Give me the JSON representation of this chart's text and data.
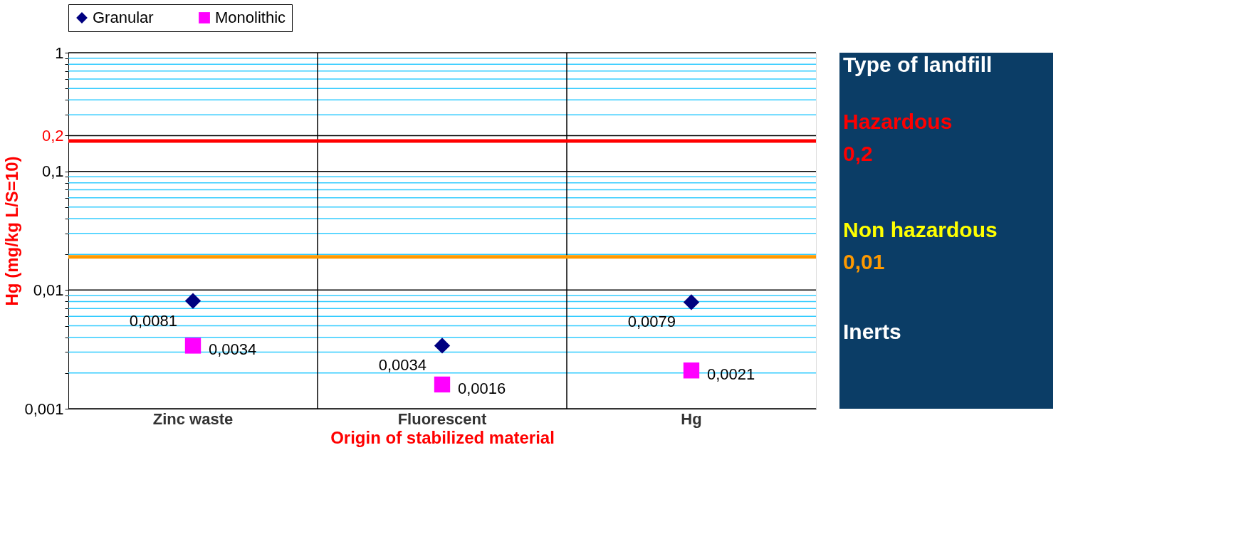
{
  "chart_data": {
    "type": "scatter",
    "ylabel": "Hg (mg/kg  L/S=10)",
    "xlabel": "Origin of stabilized material",
    "categories": [
      "Zinc waste",
      "Fluorescent",
      "Hg"
    ],
    "series": [
      {
        "name": "Granular",
        "color": "#000080",
        "marker": "diamond",
        "values": [
          0.0081,
          0.0034,
          0.0079
        ],
        "value_labels": [
          "0,0081",
          "0,0034",
          "0,0079"
        ]
      },
      {
        "name": "Monolithic",
        "color": "#ff00ff",
        "marker": "square",
        "values": [
          0.0034,
          0.0016,
          0.0021
        ],
        "value_labels": [
          "0,0034",
          "0,0016",
          "0,0021"
        ]
      }
    ],
    "log": "y",
    "ylim": [
      0.001,
      1
    ],
    "yticks": [
      {
        "value": 0.001,
        "label": "0,001"
      },
      {
        "value": 0.002,
        "label": null
      },
      {
        "value": 0.003,
        "label": null
      },
      {
        "value": 0.004,
        "label": null
      },
      {
        "value": 0.005,
        "label": null
      },
      {
        "value": 0.006,
        "label": null
      },
      {
        "value": 0.007,
        "label": null
      },
      {
        "value": 0.008,
        "label": null
      },
      {
        "value": 0.009,
        "label": null
      },
      {
        "value": 0.01,
        "label": "0,01"
      },
      {
        "value": 0.02,
        "label": null
      },
      {
        "value": 0.03,
        "label": null
      },
      {
        "value": 0.04,
        "label": null
      },
      {
        "value": 0.05,
        "label": null
      },
      {
        "value": 0.06,
        "label": null
      },
      {
        "value": 0.07,
        "label": null
      },
      {
        "value": 0.08,
        "label": null
      },
      {
        "value": 0.09,
        "label": null
      },
      {
        "value": 0.1,
        "label": "0,1"
      },
      {
        "value": 0.2,
        "label": "0,2"
      },
      {
        "value": 0.3,
        "label": null
      },
      {
        "value": 0.4,
        "label": null
      },
      {
        "value": 0.5,
        "label": null
      },
      {
        "value": 0.6,
        "label": null
      },
      {
        "value": 0.7,
        "label": null
      },
      {
        "value": 0.8,
        "label": null
      },
      {
        "value": 0.9,
        "label": null
      },
      {
        "value": 1,
        "label": "1"
      }
    ],
    "grid": true,
    "legend": "top",
    "ref_lines": [
      {
        "axis": "y",
        "value": 0.18,
        "color": "#ff0000"
      },
      {
        "axis": "y",
        "value": 0.019,
        "color": "#ff9900"
      }
    ],
    "annotations": [
      "Type of landfill",
      "Hazardous",
      "0,2",
      "Non hazardous",
      "0,01",
      "Inerts"
    ]
  }
}
